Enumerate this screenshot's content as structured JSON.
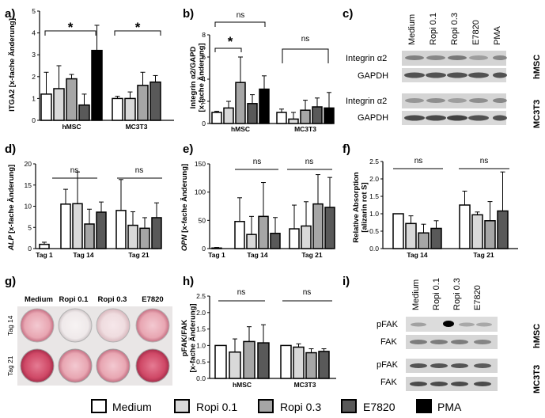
{
  "panels": {
    "a": "a)",
    "b": "b)",
    "c": "c)",
    "d": "d)",
    "e": "e)",
    "f": "f)",
    "g": "g)",
    "h": "h)",
    "i": "i)"
  },
  "legend": {
    "items": [
      {
        "label": "Medium",
        "color": "#ffffff"
      },
      {
        "label": "Ropi 0.1",
        "color": "#d9d9d9"
      },
      {
        "label": "Ropi 0.3",
        "color": "#a6a6a6"
      },
      {
        "label": "E7820",
        "color": "#595959"
      },
      {
        "label": "PMA",
        "color": "#000000"
      }
    ]
  },
  "chart_data": [
    {
      "panel": "a",
      "type": "bar",
      "title": "",
      "ylabel": "ITGA2 [x-fache Änderung]",
      "xlabel": "",
      "ylim": [
        0,
        5
      ],
      "yticks": [
        0,
        1,
        2,
        3,
        4,
        5
      ],
      "categories": [
        "hMSC",
        "MC3T3"
      ],
      "series": [
        {
          "name": "Medium",
          "values": [
            1.2,
            1.0
          ],
          "errors": [
            1.0,
            0.1
          ]
        },
        {
          "name": "Ropi 0.1",
          "values": [
            1.45,
            1.0
          ],
          "errors": [
            1.05,
            0.3
          ]
        },
        {
          "name": "Ropi 0.3",
          "values": [
            1.9,
            1.6
          ],
          "errors": [
            0.2,
            0.6
          ]
        },
        {
          "name": "E7820",
          "values": [
            0.7,
            1.75
          ],
          "errors": [
            0.5,
            0.3
          ]
        },
        {
          "name": "PMA",
          "values": [
            3.2,
            null
          ],
          "errors": [
            1.15,
            null
          ]
        }
      ],
      "annotations": [
        {
          "text": "*",
          "group": "hMSC"
        },
        {
          "text": "*",
          "group": "MC3T3"
        }
      ]
    },
    {
      "panel": "b",
      "type": "bar",
      "title": "",
      "ylabel": "Integrin α2/GAPD [x-fache Änderung]",
      "xlabel": "",
      "ylim": [
        0,
        8
      ],
      "yticks": [
        0,
        2,
        4,
        6,
        8
      ],
      "categories": [
        "hMSC",
        "MC3T3"
      ],
      "series": [
        {
          "name": "Medium",
          "values": [
            1.0,
            1.0
          ],
          "errors": [
            0.1,
            0.3
          ]
        },
        {
          "name": "Ropi 0.1",
          "values": [
            1.4,
            0.4
          ],
          "errors": [
            0.6,
            0.6
          ]
        },
        {
          "name": "Ropi 0.3",
          "values": [
            3.7,
            1.2
          ],
          "errors": [
            2.3,
            0.9
          ]
        },
        {
          "name": "E7820",
          "values": [
            1.8,
            1.5
          ],
          "errors": [
            0.8,
            0.8
          ]
        },
        {
          "name": "PMA",
          "values": [
            3.1,
            1.4
          ],
          "errors": [
            1.2,
            1.4
          ]
        }
      ],
      "annotations": [
        {
          "text": "ns",
          "group": "hMSC"
        },
        {
          "text": "*",
          "group": "hMSC"
        },
        {
          "text": "ns",
          "group": "MC3T3"
        }
      ]
    },
    {
      "panel": "d",
      "type": "bar",
      "title": "",
      "ylabel": "ALP [x-fache Änderung]",
      "xlabel": "",
      "ylim": [
        0,
        20
      ],
      "yticks": [
        0,
        5,
        10,
        15,
        20
      ],
      "categories": [
        "Tag 1",
        "Tag 14",
        "Tag 21"
      ],
      "series": [
        {
          "name": "Medium",
          "values": [
            1.0,
            10.5,
            9.0
          ],
          "errors": [
            0.5,
            3.5,
            7.3
          ]
        },
        {
          "name": "Ropi 0.1",
          "values": [
            null,
            10.6,
            5.5
          ],
          "errors": [
            null,
            7.5,
            3.2
          ]
        },
        {
          "name": "Ropi 0.3",
          "values": [
            null,
            5.8,
            4.8
          ],
          "errors": [
            null,
            3.5,
            2.5
          ]
        },
        {
          "name": "E7820",
          "values": [
            null,
            8.6,
            7.3
          ],
          "errors": [
            null,
            2.4,
            3.5
          ]
        }
      ],
      "annotations": [
        {
          "text": "ns",
          "group": "Tag 14"
        },
        {
          "text": "ns",
          "group": "Tag 21"
        }
      ]
    },
    {
      "panel": "e",
      "type": "bar",
      "title": "",
      "ylabel": "OPN [x-fache Änderung]",
      "xlabel": "",
      "ylim": [
        0,
        150
      ],
      "yticks": [
        0,
        50,
        100,
        150
      ],
      "categories": [
        "Tag 1",
        "Tag 14",
        "Tag 21"
      ],
      "series": [
        {
          "name": "Medium",
          "values": [
            1,
            48,
            35
          ],
          "errors": [
            1,
            42,
            42
          ]
        },
        {
          "name": "Ropi 0.1",
          "values": [
            null,
            25,
            40
          ],
          "errors": [
            null,
            32,
            43
          ]
        },
        {
          "name": "Ropi 0.3",
          "values": [
            null,
            57,
            79
          ],
          "errors": [
            null,
            60,
            52
          ]
        },
        {
          "name": "E7820",
          "values": [
            null,
            27,
            73
          ],
          "errors": [
            null,
            28,
            53
          ]
        }
      ],
      "annotations": [
        {
          "text": "ns",
          "group": "Tag 14"
        },
        {
          "text": "ns",
          "group": "Tag 21"
        }
      ]
    },
    {
      "panel": "f",
      "type": "bar",
      "title": "",
      "ylabel": "Relative Absorption [alizarin rot S]",
      "xlabel": "",
      "ylim": [
        0,
        2.5
      ],
      "yticks": [
        0.0,
        0.5,
        1.0,
        1.5,
        2.0,
        2.5
      ],
      "categories": [
        "Tag 14",
        "Tag 21"
      ],
      "series": [
        {
          "name": "Medium",
          "values": [
            1.0,
            1.25
          ],
          "errors": [
            0,
            0.4
          ]
        },
        {
          "name": "Ropi 0.1",
          "values": [
            0.72,
            0.97
          ],
          "errors": [
            0.22,
            0.08
          ]
        },
        {
          "name": "Ropi 0.3",
          "values": [
            0.45,
            0.8
          ],
          "errors": [
            0.25,
            0.55
          ]
        },
        {
          "name": "E7820",
          "values": [
            0.58,
            1.08
          ],
          "errors": [
            0.22,
            1.12
          ]
        }
      ],
      "annotations": [
        {
          "text": "ns",
          "group": "Tag 14"
        },
        {
          "text": "ns",
          "group": "Tag 21"
        }
      ]
    },
    {
      "panel": "h",
      "type": "bar",
      "title": "",
      "ylabel": "pFAK/FAK [x-fache Änderung]",
      "xlabel": "",
      "ylim": [
        0,
        2.5
      ],
      "yticks": [
        0.0,
        0.5,
        1.0,
        1.5,
        2.0,
        2.5
      ],
      "categories": [
        "hMSC",
        "MC3T3"
      ],
      "series": [
        {
          "name": "Medium",
          "values": [
            1.0,
            1.0
          ],
          "errors": [
            0,
            0
          ]
        },
        {
          "name": "Ropi 0.1",
          "values": [
            0.8,
            0.95
          ],
          "errors": [
            0.4,
            0.1
          ]
        },
        {
          "name": "Ropi 0.3",
          "values": [
            1.12,
            0.78
          ],
          "errors": [
            0.45,
            0.12
          ]
        },
        {
          "name": "E7820",
          "values": [
            1.08,
            0.82
          ],
          "errors": [
            0.55,
            0.08
          ]
        }
      ],
      "annotations": [
        {
          "text": "ns",
          "group": "hMSC"
        },
        {
          "text": "ns",
          "group": "MC3T3"
        }
      ]
    }
  ],
  "western_c": {
    "lanes": [
      "Medium",
      "Ropi 0.1",
      "Ropi 0.3",
      "E7820",
      "PMA"
    ],
    "rows": [
      "Integrin α2",
      "GAPDH",
      "Integrin α2",
      "GAPDH"
    ],
    "groups": [
      "hMSC",
      "MC3T3"
    ]
  },
  "western_i": {
    "lanes": [
      "Medium",
      "Ropi 0.1",
      "Ropi 0.3",
      "E7820"
    ],
    "rows": [
      "pFAK",
      "FAK",
      "pFAK",
      "FAK"
    ],
    "groups": [
      "hMSC",
      "MC3T3"
    ]
  },
  "wells_g": {
    "columns": [
      "Medium",
      "Ropi 0.1",
      "Ropi 0.3",
      "E7820"
    ],
    "rows": [
      "Tag 14",
      "Tag 21"
    ]
  }
}
